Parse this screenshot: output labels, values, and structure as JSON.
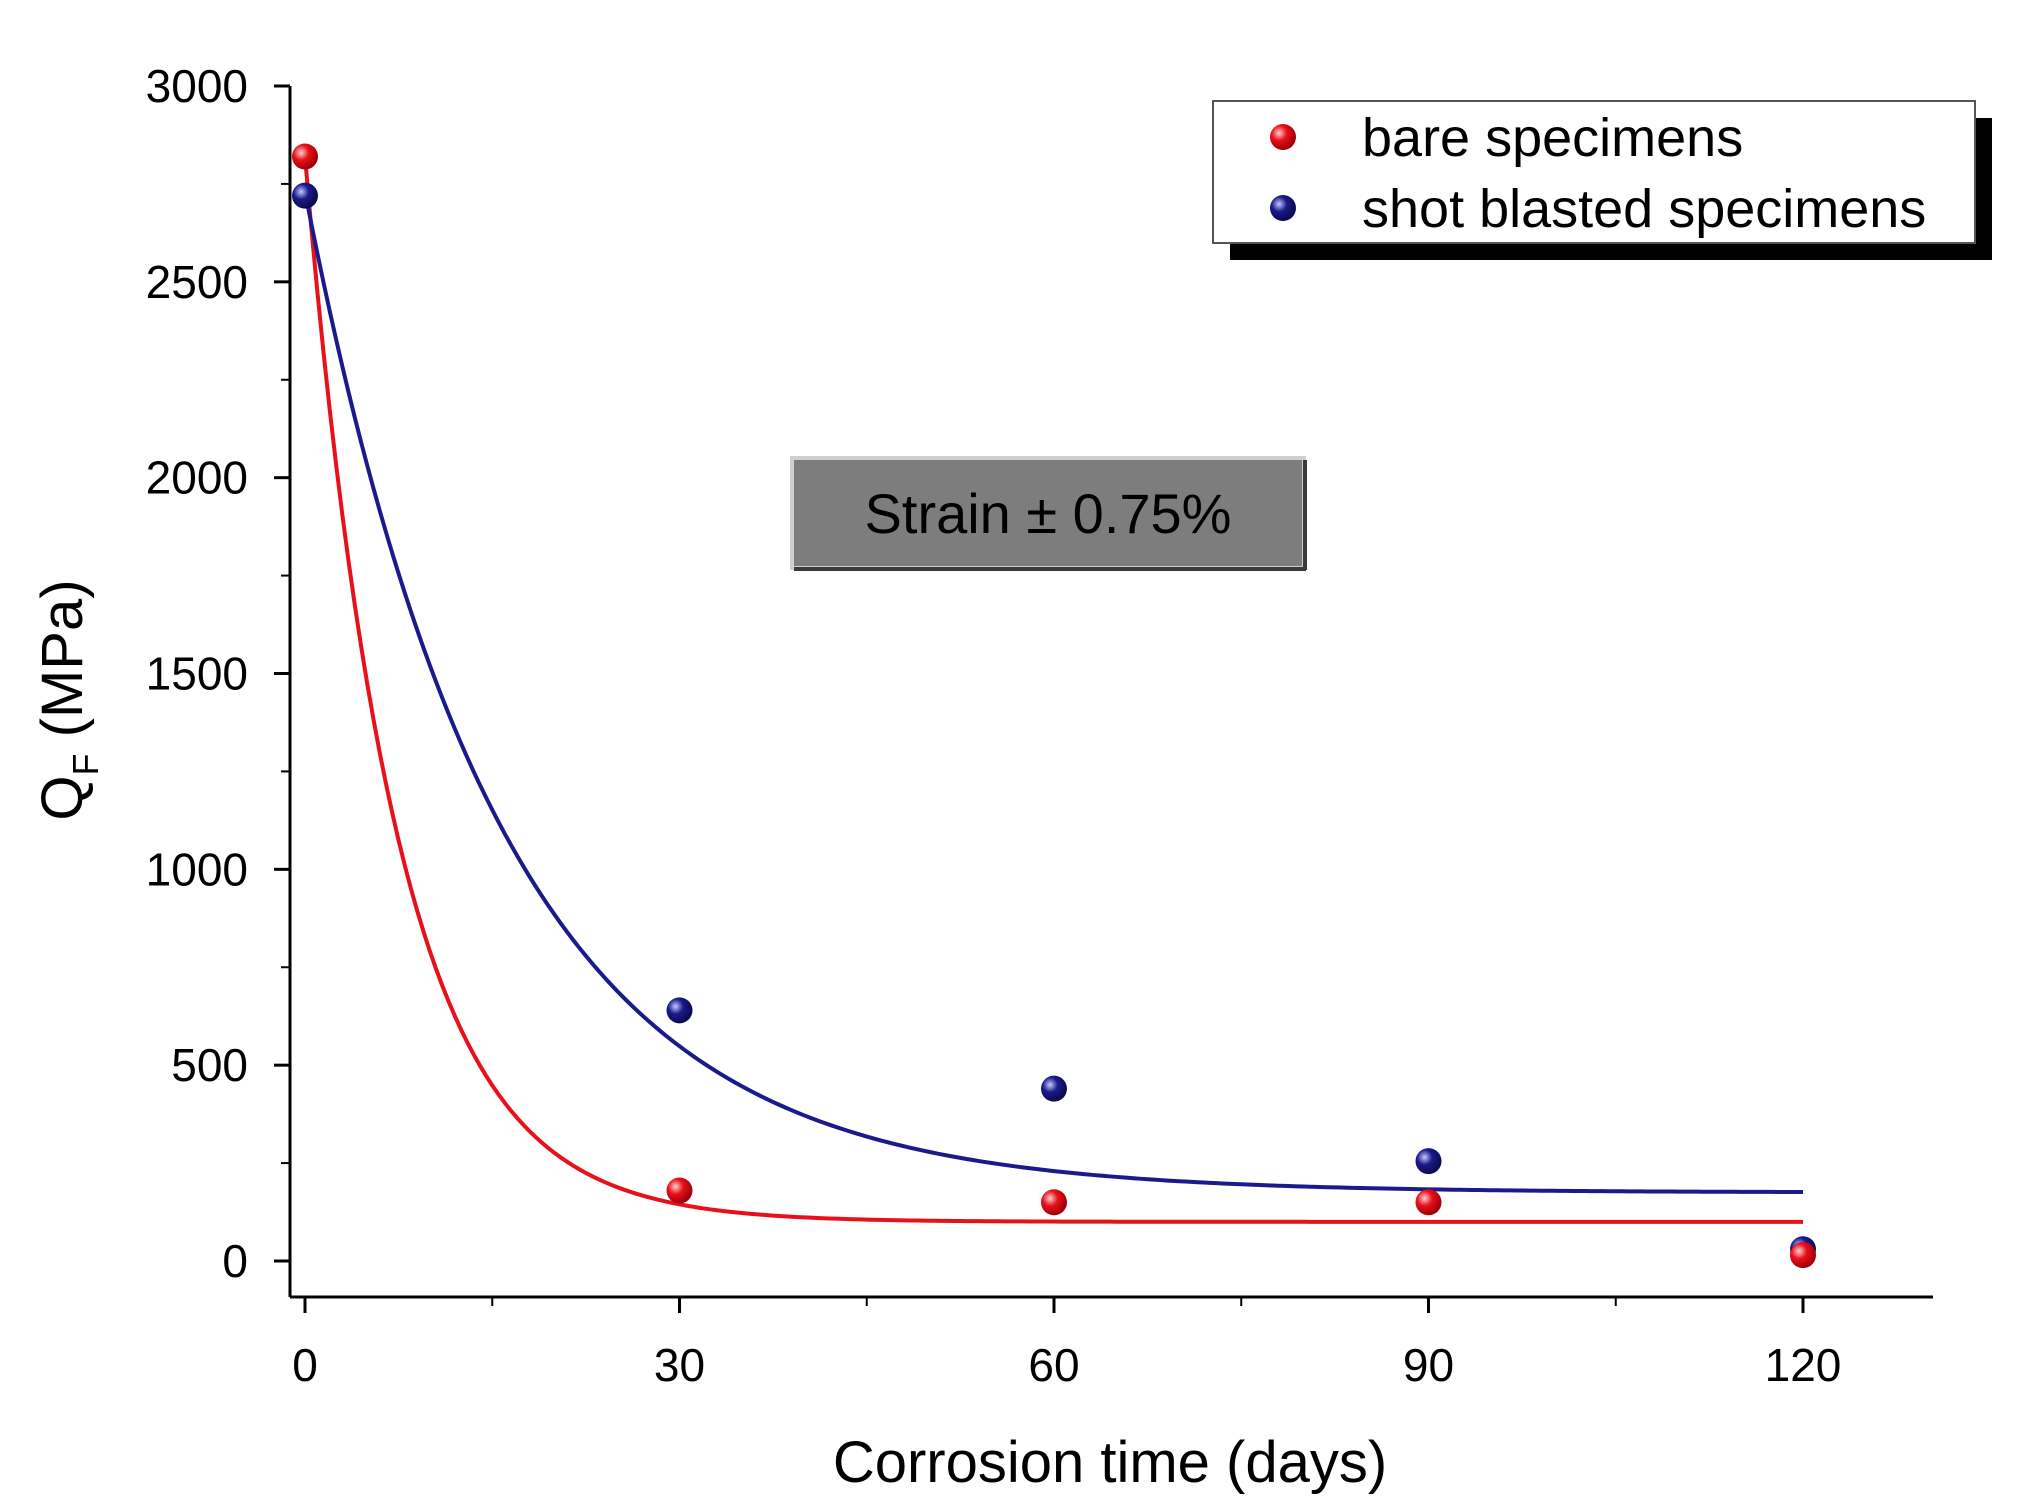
{
  "chart_data": {
    "type": "scatter",
    "title": "",
    "xlabel": "Corrosion time (days)",
    "ylabel": {
      "main": "Q",
      "subscript": "F",
      "unit": " (MPa)"
    },
    "xlim": [
      -1,
      130
    ],
    "ylim": [
      -100,
      3000
    ],
    "xticks": [
      0,
      30,
      60,
      90,
      120
    ],
    "yticks": [
      0,
      500,
      1000,
      1500,
      2000,
      2500,
      3000
    ],
    "grid": false,
    "legend_position": "top-right",
    "series": [
      {
        "name": "bare specimens",
        "color": "#e8101a",
        "points": [
          {
            "x": 0,
            "y": 2820
          },
          {
            "x": 30,
            "y": 180
          },
          {
            "x": 60,
            "y": 150
          },
          {
            "x": 90,
            "y": 150
          },
          {
            "x": 120,
            "y": 15
          }
        ],
        "fit": {
          "type": "exponential_decay",
          "y0": 100,
          "A": 2720,
          "tau": 7.3,
          "x_range": [
            0,
            120
          ]
        }
      },
      {
        "name": "shot blasted specimens",
        "color": "#1a1a8c",
        "points": [
          {
            "x": 0,
            "y": 2720
          },
          {
            "x": 30,
            "y": 640
          },
          {
            "x": 60,
            "y": 440
          },
          {
            "x": 90,
            "y": 255
          },
          {
            "x": 120,
            "y": 30
          }
        ],
        "fit": {
          "type": "exponential_decay",
          "y0": 175,
          "A": 2555,
          "tau": 15.6,
          "x_range": [
            0,
            120
          ]
        }
      }
    ],
    "annotation": "Strain ± 0.75%"
  }
}
